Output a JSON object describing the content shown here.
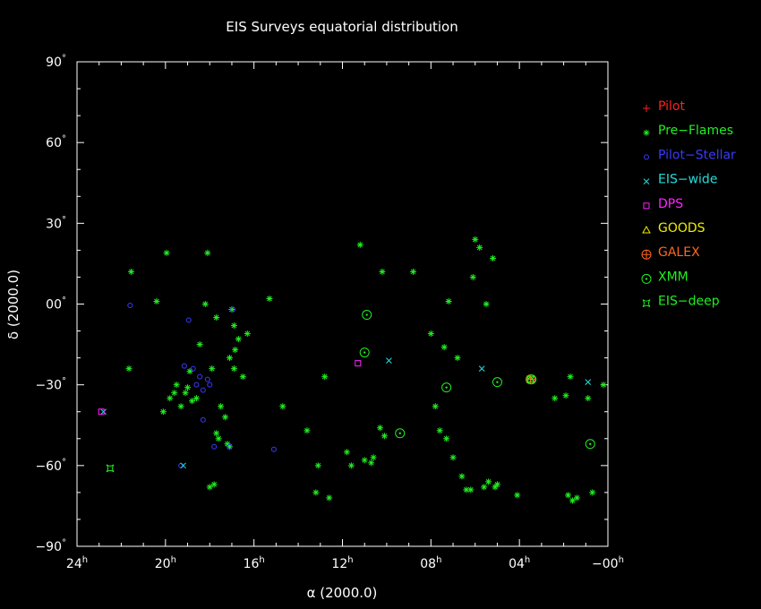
{
  "chart_data": {
    "type": "scatter",
    "title": "EIS Surveys equatorial distribution",
    "xlabel": "α (2000.0)",
    "ylabel": "δ (2000.0)",
    "x_unit": "RA hours",
    "y_unit": "Dec degrees",
    "xlim": [
      24,
      0
    ],
    "ylim": [
      -90,
      90
    ],
    "x_reversed": true,
    "grid": false,
    "legend_position": "right",
    "x_ticks": [
      {
        "value": 24,
        "label": "24",
        "sup": "h"
      },
      {
        "value": 20,
        "label": "20",
        "sup": "h"
      },
      {
        "value": 16,
        "label": "16",
        "sup": "h"
      },
      {
        "value": 12,
        "label": "12",
        "sup": "h"
      },
      {
        "value": 8,
        "label": "08",
        "sup": "h"
      },
      {
        "value": 4,
        "label": "04",
        "sup": "h"
      },
      {
        "value": 0,
        "label": "−00",
        "sup": "h"
      }
    ],
    "y_ticks": [
      {
        "value": 90,
        "label": "90",
        "sup": "°"
      },
      {
        "value": 60,
        "label": "60",
        "sup": "°"
      },
      {
        "value": 30,
        "label": "30",
        "sup": "°"
      },
      {
        "value": 0,
        "label": "00",
        "sup": "°"
      },
      {
        "value": -30,
        "label": "−30",
        "sup": "°"
      },
      {
        "value": -60,
        "label": "−60",
        "sup": "°"
      },
      {
        "value": -90,
        "label": "−90",
        "sup": "°"
      }
    ],
    "series": [
      {
        "name": "Pilot",
        "color": "#ff2020",
        "marker": "plus",
        "points": []
      },
      {
        "name": "Pre−Flames",
        "color": "#22ee22",
        "marker": "asterisk",
        "points": [
          [
            21.55,
            12
          ],
          [
            21.65,
            -24
          ],
          [
            20.4,
            1
          ],
          [
            19.95,
            19
          ],
          [
            20.1,
            -40
          ],
          [
            19.8,
            -35
          ],
          [
            19.6,
            -33
          ],
          [
            19.5,
            -30
          ],
          [
            19.3,
            -38
          ],
          [
            19.1,
            -33
          ],
          [
            19.0,
            -31
          ],
          [
            18.9,
            -25
          ],
          [
            18.8,
            -36
          ],
          [
            18.6,
            -35
          ],
          [
            18.45,
            -15
          ],
          [
            18.2,
            0
          ],
          [
            18.1,
            19
          ],
          [
            18.0,
            -68
          ],
          [
            17.8,
            -67
          ],
          [
            17.7,
            -48
          ],
          [
            17.6,
            -50
          ],
          [
            17.9,
            -24
          ],
          [
            17.5,
            -38
          ],
          [
            17.3,
            -42
          ],
          [
            17.1,
            -20
          ],
          [
            16.9,
            -24
          ],
          [
            16.85,
            -17
          ],
          [
            16.7,
            -13
          ],
          [
            16.5,
            -27
          ],
          [
            16.3,
            -11
          ],
          [
            17.7,
            -5
          ],
          [
            17.2,
            -52
          ],
          [
            17.1,
            -53
          ],
          [
            17.0,
            -2
          ],
          [
            16.9,
            -8
          ],
          [
            15.3,
            2
          ],
          [
            14.7,
            -38
          ],
          [
            13.6,
            -47
          ],
          [
            13.2,
            -70
          ],
          [
            13.1,
            -60
          ],
          [
            12.8,
            -27
          ],
          [
            12.6,
            -72
          ],
          [
            11.8,
            -55
          ],
          [
            11.6,
            -60
          ],
          [
            11.2,
            22
          ],
          [
            11.0,
            -58
          ],
          [
            10.7,
            -59
          ],
          [
            10.6,
            -57
          ],
          [
            10.3,
            -46
          ],
          [
            10.2,
            12
          ],
          [
            10.1,
            -49
          ],
          [
            8.8,
            12
          ],
          [
            8.0,
            -11
          ],
          [
            7.8,
            -38
          ],
          [
            7.6,
            -47
          ],
          [
            7.4,
            -16
          ],
          [
            7.2,
            1
          ],
          [
            7.3,
            -50
          ],
          [
            7.0,
            -57
          ],
          [
            6.8,
            -20
          ],
          [
            6.6,
            -64
          ],
          [
            6.4,
            -69
          ],
          [
            6.2,
            -69
          ],
          [
            6.0,
            24
          ],
          [
            6.1,
            10
          ],
          [
            5.8,
            21
          ],
          [
            5.5,
            0
          ],
          [
            5.6,
            -68
          ],
          [
            5.4,
            -66
          ],
          [
            5.2,
            17
          ],
          [
            5.1,
            -68
          ],
          [
            5.0,
            -67
          ],
          [
            4.1,
            -71
          ],
          [
            2.4,
            -35
          ],
          [
            1.9,
            -34
          ],
          [
            1.7,
            -27
          ],
          [
            1.8,
            -71
          ],
          [
            1.6,
            -73
          ],
          [
            1.4,
            -72
          ],
          [
            0.7,
            -70
          ],
          [
            0.2,
            -30
          ],
          [
            0.9,
            -35
          ]
        ]
      },
      {
        "name": "Pilot−Stellar",
        "color": "#3a3aff",
        "marker": "circle",
        "points": [
          [
            21.6,
            -0.5
          ],
          [
            19.3,
            -60
          ],
          [
            18.95,
            -6
          ],
          [
            18.75,
            -24
          ],
          [
            18.6,
            -30
          ],
          [
            18.3,
            -32
          ],
          [
            18.1,
            -28
          ],
          [
            18.0,
            -30
          ],
          [
            18.3,
            -43
          ],
          [
            17.8,
            -53
          ],
          [
            17.1,
            -53
          ],
          [
            16.95,
            -2
          ],
          [
            15.1,
            -54
          ],
          [
            19.15,
            -23
          ],
          [
            18.45,
            -27
          ]
        ]
      },
      {
        "name": "EIS−wide",
        "color": "#22dddd",
        "marker": "cross",
        "points": [
          [
            9.9,
            -21
          ],
          [
            5.7,
            -24
          ],
          [
            0.9,
            -29
          ],
          [
            22.8,
            -40
          ],
          [
            19.2,
            -60
          ]
        ]
      },
      {
        "name": "DPS",
        "color": "#ff22ff",
        "marker": "square",
        "points": [
          [
            22.9,
            -40
          ],
          [
            11.3,
            -22
          ]
        ]
      },
      {
        "name": "GOODS",
        "color": "#eeee00",
        "marker": "triangle",
        "points": [
          [
            3.5,
            -28
          ]
        ]
      },
      {
        "name": "GALEX",
        "color": "#ff6622",
        "marker": "circleplus",
        "points": [
          [
            3.5,
            -28
          ]
        ]
      },
      {
        "name": "XMM",
        "color": "#22ee22",
        "marker": "circledot",
        "points": [
          [
            10.9,
            -4
          ],
          [
            11.0,
            -18
          ],
          [
            9.4,
            -48
          ],
          [
            7.3,
            -31
          ],
          [
            5.0,
            -29
          ],
          [
            3.45,
            -28
          ],
          [
            0.8,
            -52
          ]
        ]
      },
      {
        "name": "EIS−deep",
        "color": "#22ee22",
        "marker": "hourglass",
        "points": [
          [
            22.5,
            -61
          ],
          [
            3.5,
            -28
          ]
        ]
      }
    ]
  }
}
